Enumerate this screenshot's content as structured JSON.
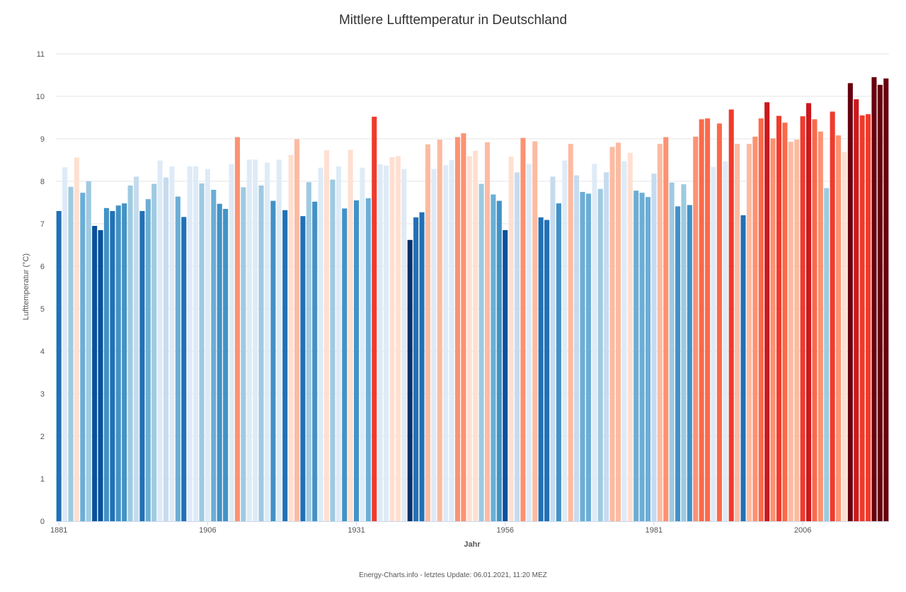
{
  "footer": "Energy-Charts.info - letztes Update: 06.01.2021, 11:20 MEZ",
  "colors": {
    "cold": [
      "#08306b",
      "#08519c",
      "#2171b5",
      "#4292c6",
      "#6baed6",
      "#9ecae1",
      "#c6dbef",
      "#deebf7"
    ],
    "warm": [
      "#fee0d2",
      "#fcbba1",
      "#fc9272",
      "#fb6a4a",
      "#ef3b2c",
      "#cb181d",
      "#a50f15",
      "#67000d"
    ],
    "gridline": "#e6e6e6",
    "axis": "#ccd6eb"
  },
  "chart_data": {
    "type": "bar",
    "title": "Mittlere Lufttemperatur in Deutschland",
    "xlabel": "Jahr",
    "ylabel": "Lufttemperatur (°C)",
    "ylim": [
      0,
      11
    ],
    "yticks": [
      "0",
      "1",
      "2",
      "3",
      "4",
      "5",
      "6",
      "7",
      "8",
      "9",
      "10",
      "11"
    ],
    "x_tick_labels": [
      "1881",
      "1906",
      "1931",
      "1956",
      "1981",
      "2006"
    ],
    "grid": true,
    "legend": "none",
    "x": [
      1881,
      1882,
      1883,
      1884,
      1885,
      1886,
      1887,
      1888,
      1889,
      1890,
      1891,
      1892,
      1893,
      1894,
      1895,
      1896,
      1897,
      1898,
      1899,
      1900,
      1901,
      1902,
      1903,
      1904,
      1905,
      1906,
      1907,
      1908,
      1909,
      1910,
      1911,
      1912,
      1913,
      1914,
      1915,
      1916,
      1917,
      1918,
      1919,
      1920,
      1921,
      1922,
      1923,
      1924,
      1925,
      1926,
      1927,
      1928,
      1929,
      1930,
      1931,
      1932,
      1933,
      1934,
      1935,
      1936,
      1937,
      1938,
      1939,
      1940,
      1941,
      1942,
      1943,
      1944,
      1945,
      1946,
      1947,
      1948,
      1949,
      1950,
      1951,
      1952,
      1953,
      1954,
      1955,
      1956,
      1957,
      1958,
      1959,
      1960,
      1961,
      1962,
      1963,
      1964,
      1965,
      1966,
      1967,
      1968,
      1969,
      1970,
      1971,
      1972,
      1973,
      1974,
      1975,
      1976,
      1977,
      1978,
      1979,
      1980,
      1981,
      1982,
      1983,
      1984,
      1985,
      1986,
      1987,
      1988,
      1989,
      1990,
      1991,
      1992,
      1993,
      1994,
      1995,
      1996,
      1997,
      1998,
      1999,
      2000,
      2001,
      2002,
      2003,
      2004,
      2005,
      2006,
      2007,
      2008,
      2009,
      2010,
      2011,
      2012,
      2013,
      2014,
      2015,
      2016,
      2017,
      2018,
      2019,
      2020
    ],
    "values": [
      7.3,
      8.33,
      7.87,
      8.56,
      7.73,
      8.0,
      6.95,
      6.85,
      7.37,
      7.3,
      7.43,
      7.48,
      7.9,
      8.11,
      7.3,
      7.58,
      7.94,
      8.49,
      8.09,
      8.35,
      7.64,
      7.16,
      8.35,
      8.35,
      7.95,
      8.29,
      7.8,
      7.47,
      7.35,
      8.4,
      9.04,
      7.86,
      8.51,
      8.51,
      7.9,
      8.44,
      7.54,
      8.51,
      7.32,
      8.62,
      8.99,
      7.18,
      7.98,
      7.52,
      8.32,
      8.73,
      8.04,
      8.35,
      7.36,
      8.74,
      7.55,
      8.32,
      7.6,
      9.52,
      8.4,
      8.37,
      8.57,
      8.59,
      8.29,
      6.62,
      7.15,
      7.27,
      8.87,
      8.29,
      8.98,
      8.38,
      8.5,
      9.04,
      9.13,
      8.59,
      8.72,
      7.94,
      8.92,
      7.69,
      7.54,
      6.85,
      8.58,
      8.21,
      9.02,
      8.41,
      8.94,
      7.15,
      7.09,
      8.11,
      7.48,
      8.49,
      8.88,
      8.14,
      7.75,
      7.71,
      8.41,
      7.82,
      8.21,
      8.81,
      8.91,
      8.47,
      8.67,
      7.78,
      7.73,
      7.63,
      8.18,
      8.88,
      9.04,
      7.97,
      7.41,
      7.93,
      7.44,
      9.05,
      9.46,
      9.48,
      8.34,
      9.36,
      8.47,
      9.69,
      8.88,
      7.2,
      8.88,
      9.05,
      9.48,
      9.86,
      9.01,
      9.54,
      9.38,
      8.93,
      8.98,
      9.53,
      9.84,
      9.46,
      9.17,
      7.84,
      9.64,
      9.08,
      8.69,
      10.31,
      9.93,
      9.55,
      9.58,
      10.45,
      10.27,
      10.42
    ]
  }
}
